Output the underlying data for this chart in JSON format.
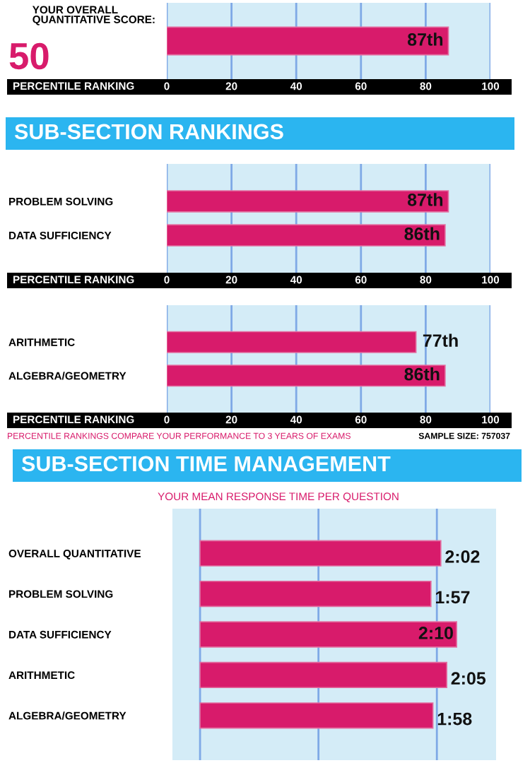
{
  "chart_data": [
    {
      "type": "bar",
      "orientation": "horizontal",
      "title": "YOUR OVERALL QUANTITATIVE SCORE:",
      "annotations": [
        "50"
      ],
      "xlabel": "PERCENTILE RANKING",
      "categories": [
        null
      ],
      "series": [
        {
          "color": "#d81b6b",
          "values": [
            87
          ],
          "value_labels": [
            "87th"
          ]
        }
      ],
      "xlim": [
        0,
        100
      ],
      "xticks": [
        0,
        20,
        40,
        60,
        80,
        100
      ],
      "grid": "x",
      "legend": false
    },
    {
      "type": "bar",
      "orientation": "horizontal",
      "title": "SUB-SECTION RANKINGS",
      "xlabel": "PERCENTILE RANKING",
      "categories": [
        "PROBLEM SOLVING",
        "DATA SUFFICIENCY"
      ],
      "series": [
        {
          "color": "#d81b6b",
          "values": [
            87,
            86
          ],
          "value_labels": [
            "87th",
            "86th"
          ]
        }
      ],
      "xlim": [
        0,
        100
      ],
      "xticks": [
        0,
        20,
        40,
        60,
        80,
        100
      ],
      "grid": "x",
      "legend": false
    },
    {
      "type": "bar",
      "orientation": "horizontal",
      "xlabel": "PERCENTILE RANKING",
      "annotations": [
        "PERCENTILE RANKINGS COMPARE YOUR PERFORMANCE TO 3 YEARS OF EXAMS",
        "SAMPLE SIZE: 757037"
      ],
      "categories": [
        "ARITHMETIC",
        "ALGEBRA/GEOMETRY"
      ],
      "series": [
        {
          "color": "#d81b6b",
          "values": [
            77,
            86
          ],
          "value_labels": [
            "77th",
            "86th"
          ]
        }
      ],
      "xlim": [
        0,
        100
      ],
      "xticks": [
        0,
        20,
        40,
        60,
        80,
        100
      ],
      "grid": "x",
      "legend": false
    },
    {
      "type": "bar",
      "orientation": "horizontal",
      "title": "SUB-SECTION TIME MANAGEMENT",
      "subtitle": "YOUR MEAN RESPONSE TIME PER QUESTION",
      "categories": [
        "OVERALL QUANTITATIVE",
        "PROBLEM SOLVING",
        "DATA SUFFICIENCY",
        "ARITHMETIC",
        "ALGEBRA/GEOMETRY"
      ],
      "series": [
        {
          "color": "#d81b6b",
          "values": [
            122,
            117,
            130,
            125,
            118
          ],
          "value_labels": [
            "2:02",
            "1:57",
            "2:10",
            "2:05",
            "1:58"
          ]
        }
      ],
      "xlim": [
        -14,
        150
      ],
      "xticks": [
        {
          "value": 0,
          "label": null
        },
        {
          "value": 60,
          "label": null
        },
        {
          "value": 120,
          "label": null
        }
      ],
      "grid": "x",
      "legend": false
    }
  ]
}
